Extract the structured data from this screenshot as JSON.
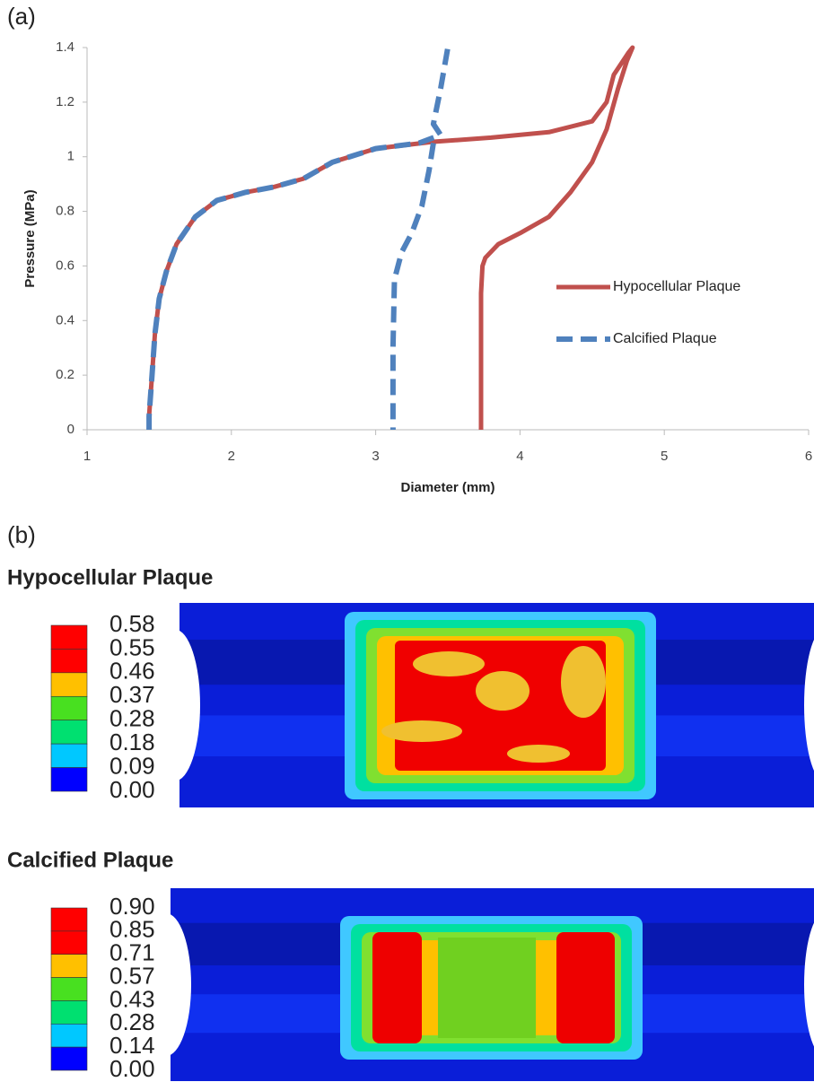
{
  "chart_data": {
    "type": "line",
    "label": "(a)",
    "x_label": "Diameter (mm)",
    "y_label": "Pressure (MPa)",
    "xlim": [
      1,
      6
    ],
    "xticks": [
      1,
      2,
      3,
      4,
      5,
      6
    ],
    "ylim": [
      0,
      1.4
    ],
    "yticks": [
      0,
      0.2,
      0.4,
      0.6,
      0.8,
      1,
      1.2,
      1.4
    ],
    "grid": false,
    "legend": "right",
    "series": [
      {
        "name": "Hypocellular Plaque",
        "color": "#c0504d",
        "dashed": false,
        "x": [
          3.73,
          3.73,
          3.74,
          3.76,
          3.85,
          4.0,
          4.2,
          4.35,
          4.5,
          4.6,
          4.68,
          4.74,
          4.78,
          4.75,
          4.65,
          4.6,
          4.5,
          4.2,
          3.8,
          3.4,
          3.0,
          2.7,
          2.5,
          2.3,
          2.1,
          1.9,
          1.75,
          1.62,
          1.55,
          1.5,
          1.47,
          1.45,
          1.43,
          1.43
        ],
        "values": [
          0,
          0.5,
          0.6,
          0.63,
          0.68,
          0.72,
          0.78,
          0.87,
          0.98,
          1.1,
          1.25,
          1.35,
          1.4,
          1.38,
          1.3,
          1.2,
          1.13,
          1.09,
          1.07,
          1.055,
          1.03,
          0.98,
          0.92,
          0.89,
          0.87,
          0.84,
          0.78,
          0.68,
          0.58,
          0.48,
          0.35,
          0.2,
          0.05,
          0
        ]
      },
      {
        "name": "Calcified Plaque",
        "color": "#4f81bd",
        "dashed": true,
        "x": [
          1.43,
          1.43,
          1.45,
          1.47,
          1.5,
          1.55,
          1.62,
          1.75,
          1.9,
          2.1,
          2.3,
          2.5,
          2.7,
          3.0,
          3.3,
          3.45,
          3.4,
          3.45,
          3.5,
          null,
          3.4,
          3.37,
          3.32,
          3.25,
          3.18,
          3.13,
          3.12,
          3.12
        ],
        "values": [
          0,
          0.05,
          0.2,
          0.35,
          0.48,
          0.58,
          0.68,
          0.78,
          0.84,
          0.87,
          0.89,
          0.92,
          0.98,
          1.03,
          1.05,
          1.08,
          1.12,
          1.25,
          1.4,
          null,
          1.05,
          0.95,
          0.82,
          0.72,
          0.65,
          0.55,
          0.3,
          0
        ]
      }
    ]
  },
  "panel_b": {
    "label": "(b)",
    "plots": [
      {
        "title": "Hypocellular Plaque",
        "colorbar": [
          "0.58",
          "0.55",
          "0.46",
          "0.37",
          "0.28",
          "0.18",
          "0.09",
          "0.00"
        ]
      },
      {
        "title": "Calcified Plaque",
        "colorbar": [
          "0.90",
          "0.85",
          "0.71",
          "0.57",
          "0.43",
          "0.28",
          "0.14",
          "0.00"
        ]
      }
    ]
  }
}
